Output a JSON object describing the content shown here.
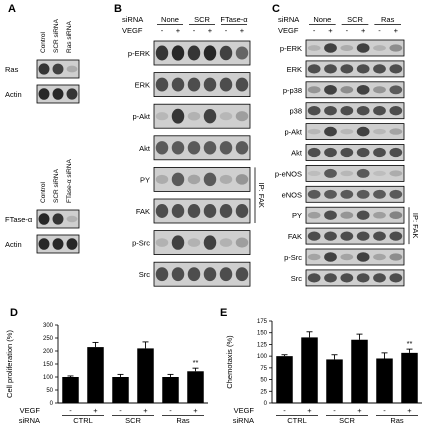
{
  "panel_letters": {
    "A": "A",
    "B": "B",
    "C": "C",
    "D": "D",
    "E": "E"
  },
  "panel_a": {
    "top": {
      "columns": [
        "Control",
        "SCR siRNA",
        "Ras siRNA"
      ],
      "rows": [
        {
          "label": "Ras",
          "intensities": [
            0.85,
            0.8,
            0.25
          ]
        },
        {
          "label": "Actin",
          "intensities": [
            0.9,
            0.9,
            0.85
          ]
        }
      ]
    },
    "bottom": {
      "columns": [
        "Control",
        "SCR siRNA",
        "FTase-α siRNA"
      ],
      "rows": [
        {
          "label": "FTase-α",
          "intensities": [
            0.9,
            0.85,
            0.2
          ]
        },
        {
          "label": "Actin",
          "intensities": [
            0.9,
            0.9,
            0.9
          ]
        }
      ]
    }
  },
  "panel_b": {
    "row_siRNA": "siRNA",
    "row_vegf": "VEGF",
    "groups": [
      "None",
      "SCR",
      "FTase-α"
    ],
    "signs": [
      "-",
      "+",
      "-",
      "+",
      "-",
      "+"
    ],
    "ip_label": "IP: FAK",
    "rows": [
      {
        "label": "p-ERK",
        "intensities": [
          0.85,
          0.9,
          0.85,
          0.9,
          0.8,
          0.65
        ]
      },
      {
        "label": "ERK",
        "intensities": [
          0.75,
          0.75,
          0.75,
          0.75,
          0.75,
          0.75
        ]
      },
      {
        "label": "p-Akt",
        "intensities": [
          0.15,
          0.85,
          0.2,
          0.8,
          0.15,
          0.35
        ]
      },
      {
        "label": "Akt",
        "intensities": [
          0.7,
          0.7,
          0.7,
          0.7,
          0.7,
          0.7
        ]
      },
      {
        "label": "PY",
        "intensities": [
          0.25,
          0.7,
          0.3,
          0.7,
          0.25,
          0.4
        ]
      },
      {
        "label": "FAK",
        "intensities": [
          0.75,
          0.75,
          0.75,
          0.75,
          0.75,
          0.75
        ]
      },
      {
        "label": "p-Src",
        "intensities": [
          0.2,
          0.8,
          0.2,
          0.8,
          0.2,
          0.35
        ]
      },
      {
        "label": "Src",
        "intensities": [
          0.75,
          0.75,
          0.75,
          0.75,
          0.75,
          0.75
        ]
      }
    ]
  },
  "panel_c": {
    "row_siRNA": "siRNA",
    "row_vegf": "VEGF",
    "groups": [
      "None",
      "SCR",
      "Ras"
    ],
    "signs": [
      "-",
      "+",
      "-",
      "+",
      "-",
      "+"
    ],
    "ip_label": "IP: FAK",
    "rows": [
      {
        "label": "p-ERK",
        "intensities": [
          0.2,
          0.8,
          0.25,
          0.8,
          0.2,
          0.45
        ]
      },
      {
        "label": "ERK",
        "intensities": [
          0.75,
          0.75,
          0.75,
          0.75,
          0.75,
          0.75
        ]
      },
      {
        "label": "p-p38",
        "intensities": [
          0.4,
          0.8,
          0.45,
          0.8,
          0.4,
          0.7
        ]
      },
      {
        "label": "p38",
        "intensities": [
          0.75,
          0.75,
          0.75,
          0.75,
          0.75,
          0.75
        ]
      },
      {
        "label": "p-Akt",
        "intensities": [
          0.15,
          0.8,
          0.15,
          0.8,
          0.15,
          0.3
        ]
      },
      {
        "label": "Akt",
        "intensities": [
          0.75,
          0.75,
          0.75,
          0.75,
          0.75,
          0.75
        ]
      },
      {
        "label": "p-eNOS",
        "intensities": [
          0.1,
          0.7,
          0.15,
          0.7,
          0.1,
          0.25
        ]
      },
      {
        "label": "eNOS",
        "intensities": [
          0.7,
          0.7,
          0.7,
          0.7,
          0.7,
          0.7
        ]
      },
      {
        "label": "PY",
        "intensities": [
          0.35,
          0.75,
          0.4,
          0.75,
          0.35,
          0.5
        ]
      },
      {
        "label": "FAK",
        "intensities": [
          0.75,
          0.75,
          0.75,
          0.75,
          0.75,
          0.75
        ]
      },
      {
        "label": "p-Src",
        "intensities": [
          0.3,
          0.8,
          0.3,
          0.8,
          0.3,
          0.45
        ]
      },
      {
        "label": "Src",
        "intensities": [
          0.75,
          0.75,
          0.75,
          0.75,
          0.75,
          0.75
        ]
      }
    ]
  },
  "chart_data": [
    {
      "type": "bar",
      "panel": "D",
      "ylabel": "Cell proliferation (%)",
      "ylim": [
        0,
        300
      ],
      "yticks": [
        0,
        50,
        100,
        150,
        200,
        250,
        300
      ],
      "x_row_vegf": "VEGF",
      "x_row_siRNA": "siRNA",
      "signs": [
        "-",
        "+",
        "-",
        "+",
        "-",
        "+"
      ],
      "groups": [
        "CTRL",
        "SCR",
        "Ras"
      ],
      "values": [
        100,
        215,
        100,
        210,
        100,
        122
      ],
      "errors": [
        4,
        18,
        10,
        25,
        10,
        12
      ],
      "annotations": [
        {
          "bar_index": 5,
          "text": "**"
        }
      ],
      "bar_color": "#000000"
    },
    {
      "type": "bar",
      "panel": "E",
      "ylabel": "Chemotaxis (%)",
      "ylim": [
        0,
        175
      ],
      "yticks": [
        0,
        25,
        50,
        75,
        100,
        125,
        150,
        175
      ],
      "x_row_vegf": "VEGF",
      "x_row_siRNA": "siRNA",
      "signs": [
        "-",
        "+",
        "-",
        "+",
        "-",
        "+"
      ],
      "groups": [
        "CTRL",
        "SCR",
        "Ras"
      ],
      "values": [
        100,
        140,
        93,
        135,
        95,
        107
      ],
      "errors": [
        3,
        12,
        10,
        12,
        12,
        8
      ],
      "annotations": [
        {
          "bar_index": 5,
          "text": "**"
        }
      ],
      "bar_color": "#000000"
    }
  ]
}
